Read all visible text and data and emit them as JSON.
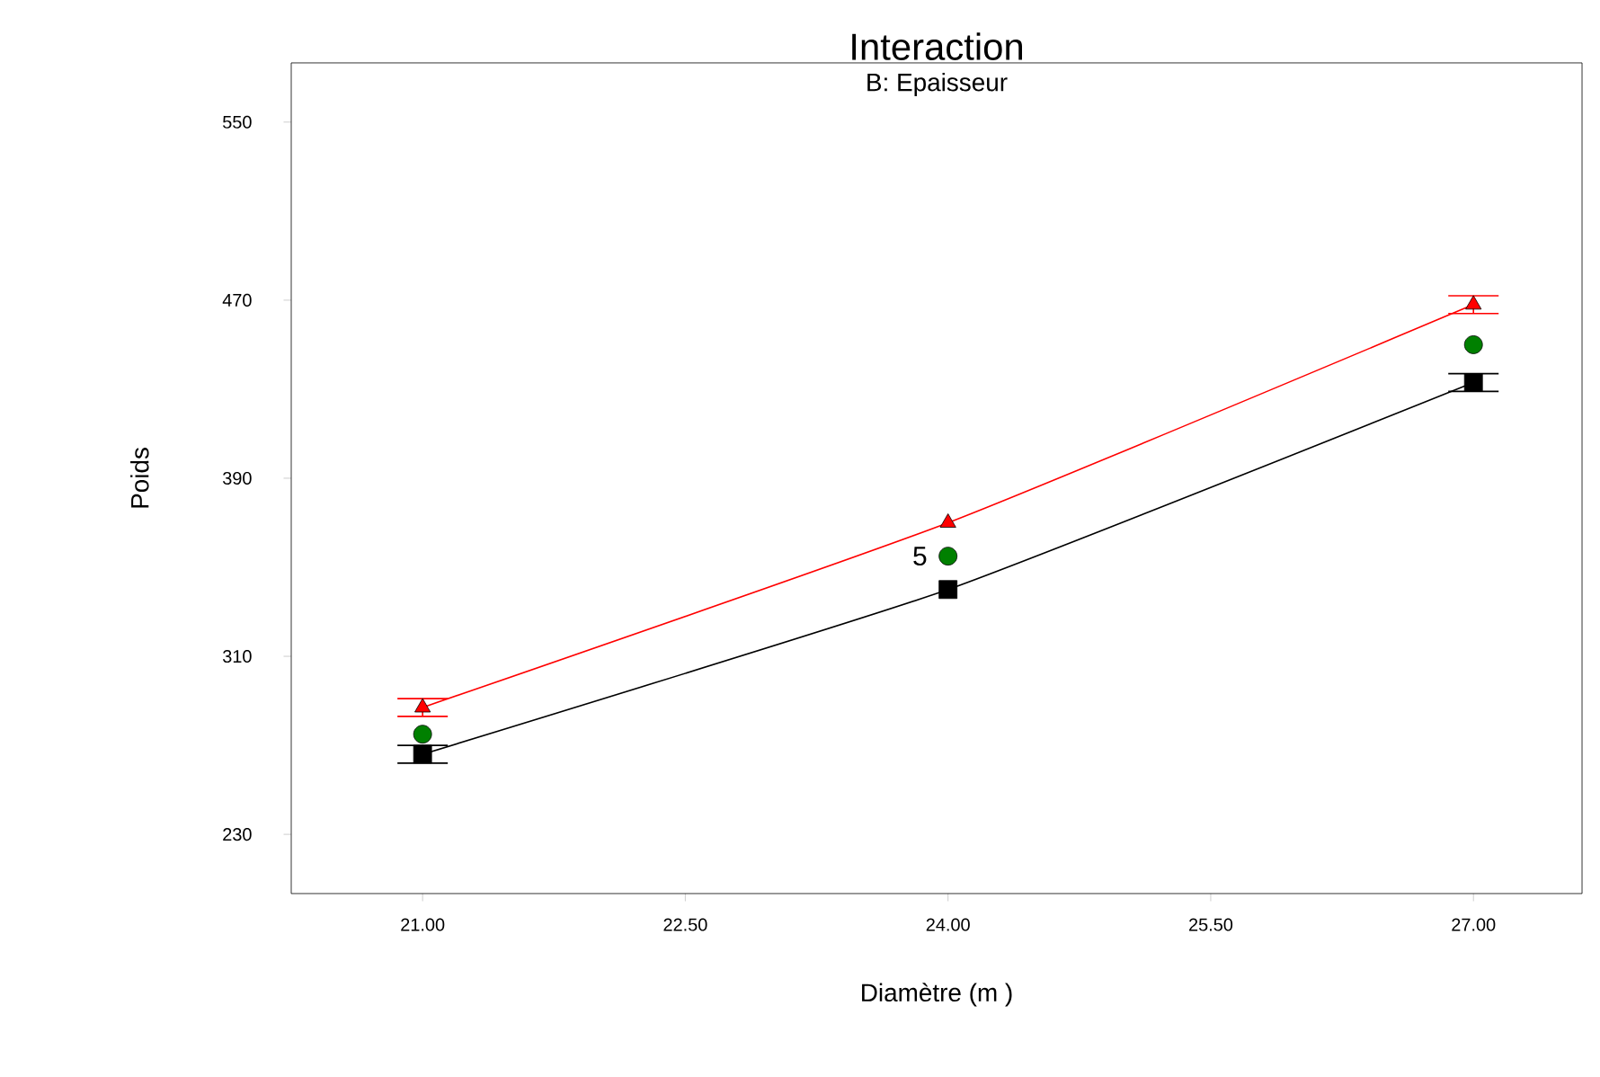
{
  "chart_data": {
    "type": "line",
    "title": "Interaction",
    "subtitle": "B: Epaisseur",
    "xlabel": "Diamètre (m )",
    "ylabel": "Poids",
    "x": [
      21,
      24,
      27
    ],
    "series": [
      {
        "color": "#ff0000",
        "values": [
          287,
          370,
          468
        ],
        "errors": [
          4,
          null,
          4
        ],
        "marker": "triangle"
      },
      {
        "color": "#000000",
        "values": [
          266,
          340,
          433
        ],
        "errors": [
          4,
          null,
          4
        ],
        "marker": "square"
      },
      {
        "type": "scatter",
        "color": "#008000",
        "values": [
          275,
          355,
          450
        ],
        "marker": "circle"
      }
    ],
    "annotations": [
      {
        "text": "5",
        "x": 24,
        "y": 355
      }
    ],
    "xlim": [
      20.25,
      27.62
    ],
    "ylim": [
      203.4,
      576.6
    ],
    "xticks": [
      {
        "value": 21,
        "label": "21.00"
      },
      {
        "value": 22.5,
        "label": "22.50"
      },
      {
        "value": 24,
        "label": "24.00"
      },
      {
        "value": 25.5,
        "label": "25.50"
      },
      {
        "value": 27,
        "label": "27.00"
      }
    ],
    "yticks": [
      230,
      310,
      390,
      470,
      550
    ],
    "grid": false
  }
}
